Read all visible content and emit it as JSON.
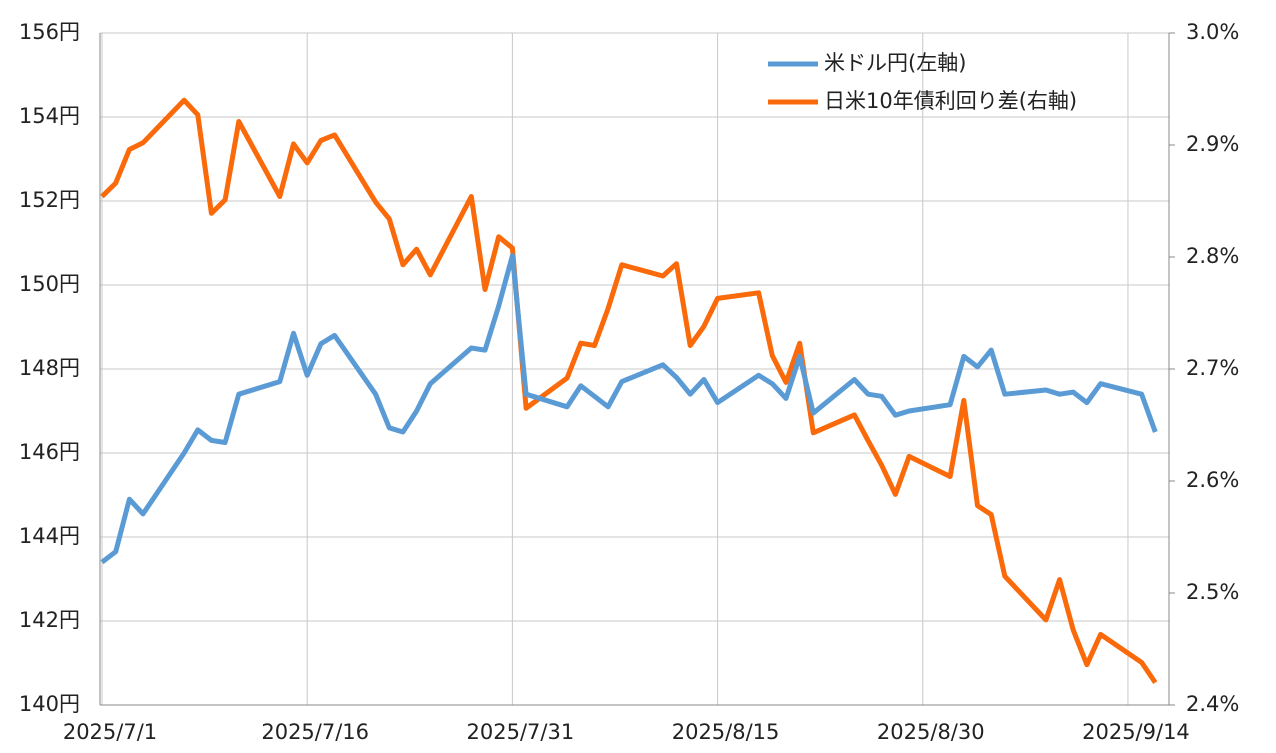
{
  "chart_data": {
    "type": "line",
    "x": [
      "2025/7/1",
      "2025/7/2",
      "2025/7/3",
      "2025/7/4",
      "2025/7/7",
      "2025/7/8",
      "2025/7/9",
      "2025/7/10",
      "2025/7/11",
      "2025/7/14",
      "2025/7/15",
      "2025/7/16",
      "2025/7/17",
      "2025/7/18",
      "2025/7/21",
      "2025/7/22",
      "2025/7/23",
      "2025/7/24",
      "2025/7/25",
      "2025/7/28",
      "2025/7/29",
      "2025/7/30",
      "2025/7/31",
      "2025/8/1",
      "2025/8/4",
      "2025/8/5",
      "2025/8/6",
      "2025/8/7",
      "2025/8/8",
      "2025/8/11",
      "2025/8/12",
      "2025/8/13",
      "2025/8/14",
      "2025/8/15",
      "2025/8/18",
      "2025/8/19",
      "2025/8/20",
      "2025/8/21",
      "2025/8/22",
      "2025/8/25",
      "2025/8/26",
      "2025/8/27",
      "2025/8/28",
      "2025/8/29",
      "2025/9/1",
      "2025/9/2",
      "2025/9/3",
      "2025/9/4",
      "2025/9/5",
      "2025/9/8",
      "2025/9/9",
      "2025/9/10",
      "2025/9/11",
      "2025/9/12",
      "2025/9/15",
      "2025/9/16"
    ],
    "series": [
      {
        "name": "米ドル円(左軸)",
        "color": "#5b9bd5",
        "axis": "y",
        "values": [
          143.4,
          143.65,
          144.9,
          144.55,
          146.0,
          146.55,
          146.3,
          146.25,
          147.4,
          147.7,
          148.85,
          147.85,
          148.6,
          148.8,
          147.4,
          146.6,
          146.5,
          147.0,
          147.65,
          148.5,
          148.45,
          149.5,
          150.7,
          147.4,
          147.1,
          147.6,
          147.35,
          147.1,
          147.7,
          148.1,
          147.8,
          147.4,
          147.75,
          147.2,
          147.85,
          147.65,
          147.3,
          148.3,
          146.95,
          147.75,
          147.4,
          147.35,
          146.9,
          147.0,
          147.15,
          148.3,
          148.05,
          148.45,
          147.4,
          147.5,
          147.4,
          147.45,
          147.2,
          147.65,
          147.4,
          146.5
        ]
      },
      {
        "name": "日米10年債利回り差(右軸)",
        "color": "#fa6a0a",
        "axis": "y2",
        "values": [
          2.854,
          2.866,
          2.896,
          2.902,
          2.94,
          2.927,
          2.839,
          2.851,
          2.921,
          2.854,
          2.901,
          2.884,
          2.904,
          2.909,
          2.849,
          2.834,
          2.793,
          2.807,
          2.784,
          2.854,
          2.771,
          2.818,
          2.808,
          2.665,
          2.692,
          2.723,
          2.721,
          2.754,
          2.793,
          2.783,
          2.794,
          2.721,
          2.738,
          2.763,
          2.768,
          2.712,
          2.688,
          2.723,
          2.643,
          2.659,
          2.636,
          2.614,
          2.588,
          2.622,
          2.604,
          2.672,
          2.578,
          2.57,
          2.515,
          2.476,
          2.512,
          2.467,
          2.436,
          2.463,
          2.438,
          2.42
        ]
      }
    ],
    "xlim": [
      "2025/7/1",
      "2025/9/17"
    ],
    "xticks": [
      "2025/7/1",
      "2025/7/16",
      "2025/7/31",
      "2025/8/15",
      "2025/8/30",
      "2025/9/14"
    ],
    "ylim": [
      140,
      156
    ],
    "yticks": [
      {
        "value": 140,
        "label": "140円"
      },
      {
        "value": 142,
        "label": "142円"
      },
      {
        "value": 144,
        "label": "144円"
      },
      {
        "value": 146,
        "label": "146円"
      },
      {
        "value": 148,
        "label": "148円"
      },
      {
        "value": 150,
        "label": "150円"
      },
      {
        "value": 152,
        "label": "152円"
      },
      {
        "value": 154,
        "label": "154円"
      },
      {
        "value": 156,
        "label": "156円"
      }
    ],
    "y2lim": [
      2.4,
      3.0
    ],
    "y2ticks": [
      {
        "value": 2.4,
        "label": "2.4%"
      },
      {
        "value": 2.5,
        "label": "2.5%"
      },
      {
        "value": 2.6,
        "label": "2.6%"
      },
      {
        "value": 2.7,
        "label": "2.7%"
      },
      {
        "value": 2.8,
        "label": "2.8%"
      },
      {
        "value": 2.9,
        "label": "2.9%"
      },
      {
        "value": 3.0,
        "label": "3.0%"
      }
    ],
    "grid": true,
    "legend": "top-right"
  }
}
